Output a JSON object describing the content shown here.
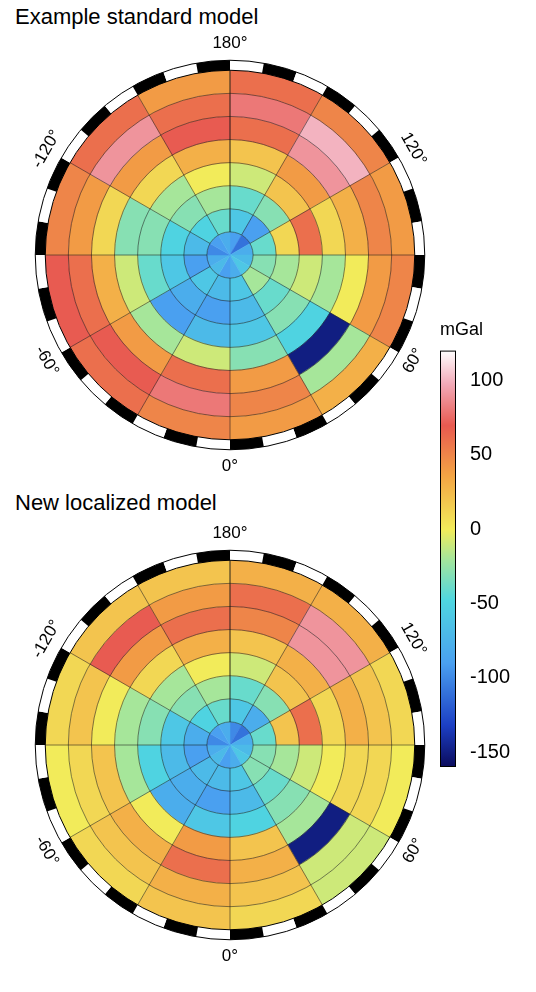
{
  "chart_data": [
    {
      "type": "polar_heatmap",
      "title": "Example standard model",
      "lon_edges": [
        180,
        150,
        120,
        90,
        60,
        30,
        0,
        -30,
        -60,
        -90,
        -120,
        -150,
        -180
      ],
      "colat_edges": [
        0,
        5,
        10,
        15,
        20,
        25,
        30,
        35,
        40
      ],
      "values": [
        [
          -90,
          -110,
          -80,
          -70,
          -60,
          -80,
          -90,
          -70,
          -80,
          -100,
          -90,
          -80
        ],
        [
          -60,
          -90,
          -40,
          -30,
          -20,
          -60,
          -70,
          -60,
          -90,
          -70,
          -50,
          -40
        ],
        [
          -40,
          -30,
          10,
          -20,
          -40,
          -70,
          -90,
          -80,
          -60,
          -50,
          -30,
          -20
        ],
        [
          -10,
          20,
          60,
          -10,
          -30,
          -60,
          -70,
          -90,
          -40,
          -30,
          -20,
          0
        ],
        [
          20,
          40,
          10,
          -20,
          -50,
          -30,
          -10,
          -20,
          -10,
          -30,
          10,
          30
        ],
        [
          60,
          90,
          30,
          0,
          -150,
          40,
          60,
          40,
          30,
          10,
          40,
          70
        ],
        [
          80,
          100,
          50,
          40,
          -20,
          50,
          80,
          70,
          60,
          40,
          90,
          60
        ],
        [
          60,
          50,
          40,
          50,
          30,
          40,
          50,
          60,
          70,
          50,
          60,
          40
        ]
      ],
      "lon_ticks": [
        {
          "value": 180,
          "label": "180°"
        },
        {
          "value": 120,
          "label": "120°"
        },
        {
          "value": 60,
          "label": "60°"
        },
        {
          "value": 0,
          "label": "0°"
        },
        {
          "value": -60,
          "label": "-60°"
        },
        {
          "value": -120,
          "label": "-120°"
        }
      ],
      "grid": true
    },
    {
      "type": "polar_heatmap",
      "title": "New localized model",
      "lon_edges": [
        180,
        150,
        120,
        90,
        60,
        30,
        0,
        -30,
        -60,
        -90,
        -120,
        -150,
        -180
      ],
      "colat_edges": [
        0,
        5,
        10,
        15,
        20,
        25,
        30,
        35,
        40
      ],
      "values": [
        [
          -100,
          -110,
          -80,
          -70,
          -60,
          -80,
          -90,
          -70,
          -80,
          -100,
          -90,
          -80
        ],
        [
          -60,
          -80,
          -40,
          -30,
          -30,
          -60,
          -70,
          -70,
          -90,
          -80,
          -50,
          -40
        ],
        [
          -40,
          -30,
          20,
          -20,
          -40,
          -70,
          -90,
          -80,
          -70,
          -60,
          -30,
          -20
        ],
        [
          -10,
          20,
          60,
          -10,
          -30,
          -50,
          -60,
          -80,
          -50,
          -30,
          -20,
          0
        ],
        [
          20,
          30,
          10,
          0,
          -20,
          20,
          40,
          0,
          -20,
          -20,
          10,
          30
        ],
        [
          50,
          90,
          30,
          10,
          -150,
          30,
          60,
          30,
          20,
          0,
          40,
          60
        ],
        [
          60,
          90,
          20,
          10,
          -10,
          20,
          30,
          20,
          10,
          20,
          70,
          40
        ],
        [
          30,
          30,
          10,
          0,
          -10,
          10,
          20,
          10,
          0,
          10,
          20,
          20
        ]
      ],
      "lon_ticks": [
        {
          "value": 180,
          "label": "180°"
        },
        {
          "value": 120,
          "label": "120°"
        },
        {
          "value": 60,
          "label": "60°"
        },
        {
          "value": 0,
          "label": "0°"
        },
        {
          "value": -60,
          "label": "-60°"
        },
        {
          "value": -120,
          "label": "-120°"
        }
      ],
      "grid": true
    }
  ],
  "colorbar": {
    "label": "mGal",
    "range": [
      -160,
      120
    ],
    "ticks": [
      100,
      50,
      0,
      -50,
      -100,
      -150
    ]
  }
}
